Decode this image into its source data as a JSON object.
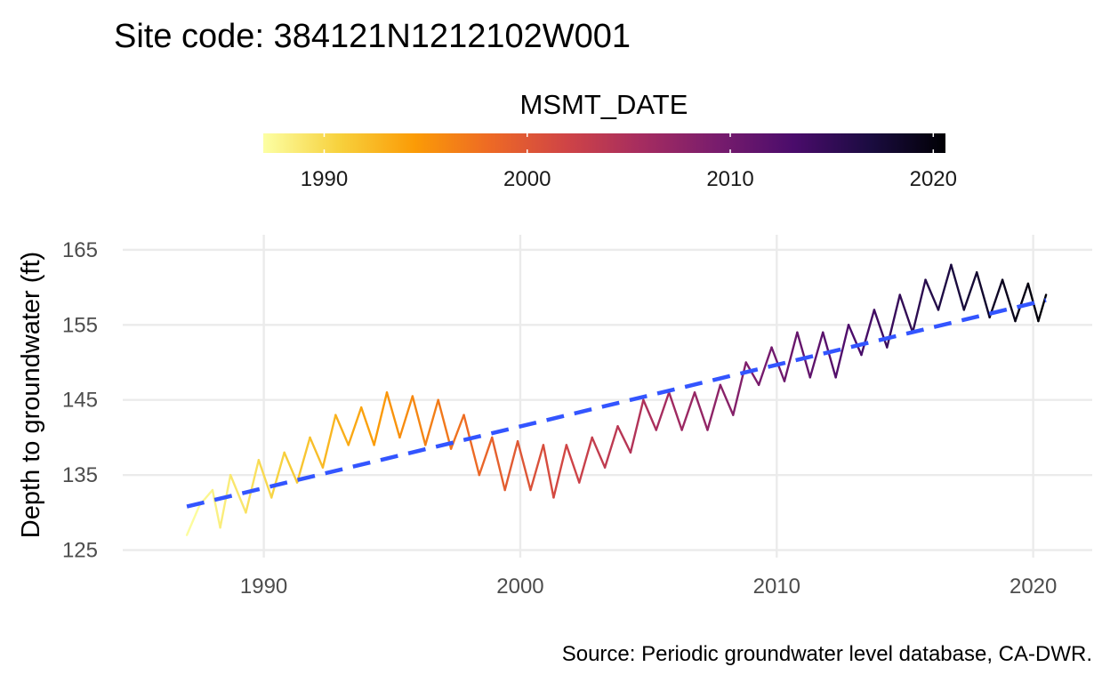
{
  "chart_data": {
    "type": "line",
    "title": "Site code: 384121N1212102W001",
    "ylabel": "Depth to groundwater (ft)",
    "xlabel": "",
    "caption": "Source: Periodic groundwater level database, CA-DWR.",
    "xlim": [
      1984.5,
      2022.3
    ],
    "ylim": [
      124,
      167
    ],
    "x_ticks": [
      1990,
      2000,
      2010,
      2020
    ],
    "x_tick_labels": [
      "1990",
      "2000",
      "2010",
      "2020"
    ],
    "y_ticks": [
      125,
      135,
      145,
      155,
      165
    ],
    "y_tick_labels": [
      "125",
      "135",
      "145",
      "155",
      "165"
    ],
    "grid": true,
    "legend": {
      "title": "MSMT_DATE",
      "position": "top",
      "type": "colorbar",
      "palette": "inferno (reversed)",
      "range": [
        1987,
        2020.6
      ],
      "ticks": [
        1990,
        2000,
        2010,
        2020
      ],
      "tick_labels": [
        "1990",
        "2000",
        "2010",
        "2020"
      ],
      "colors": [
        "#fcffa4",
        "#f7d13d",
        "#fb9b06",
        "#ed6925",
        "#cf4446",
        "#a52c60",
        "#781c6d",
        "#4a0c6b",
        "#1b0c41",
        "#000004"
      ]
    },
    "series": [
      {
        "kind": "observed",
        "x": [
          1987.0,
          1987.5,
          1988.0,
          1988.3,
          1988.7,
          1989.3,
          1989.8,
          1990.3,
          1990.8,
          1991.3,
          1991.8,
          1992.3,
          1992.8,
          1993.3,
          1993.8,
          1994.3,
          1994.8,
          1995.3,
          1995.8,
          1996.3,
          1996.8,
          1997.3,
          1997.8,
          1998.4,
          1998.9,
          1999.4,
          1999.9,
          2000.4,
          2000.9,
          2001.3,
          2001.8,
          2002.3,
          2002.8,
          2003.3,
          2003.8,
          2004.3,
          2004.8,
          2005.3,
          2005.8,
          2006.3,
          2006.8,
          2007.3,
          2007.8,
          2008.3,
          2008.8,
          2009.3,
          2009.8,
          2010.3,
          2010.8,
          2011.3,
          2011.8,
          2012.3,
          2012.8,
          2013.3,
          2013.8,
          2014.3,
          2014.8,
          2015.3,
          2015.8,
          2016.3,
          2016.8,
          2017.3,
          2017.8,
          2018.3,
          2018.8,
          2019.3,
          2019.8,
          2020.2,
          2020.5
        ],
        "y": [
          127,
          131,
          133,
          128,
          135,
          130,
          137,
          132,
          138,
          134,
          140,
          136,
          143,
          139,
          144,
          139,
          146,
          140,
          145.5,
          139,
          145,
          138.5,
          143,
          135,
          140,
          133,
          139.5,
          133,
          139,
          132,
          139,
          134,
          140,
          136,
          141.5,
          138,
          145,
          141,
          146,
          141,
          146,
          141,
          147,
          143,
          150,
          147,
          152,
          147.5,
          154,
          148,
          154,
          148,
          155,
          151,
          157,
          152,
          159,
          154,
          161,
          157,
          163,
          157,
          162,
          156,
          161,
          155.5,
          160.5,
          155.5,
          159
        ]
      },
      {
        "kind": "trend",
        "style": "dashed",
        "color": "#3355ff",
        "x": [
          1987.0,
          2020.5
        ],
        "y": [
          130.8,
          158.3
        ]
      }
    ]
  }
}
